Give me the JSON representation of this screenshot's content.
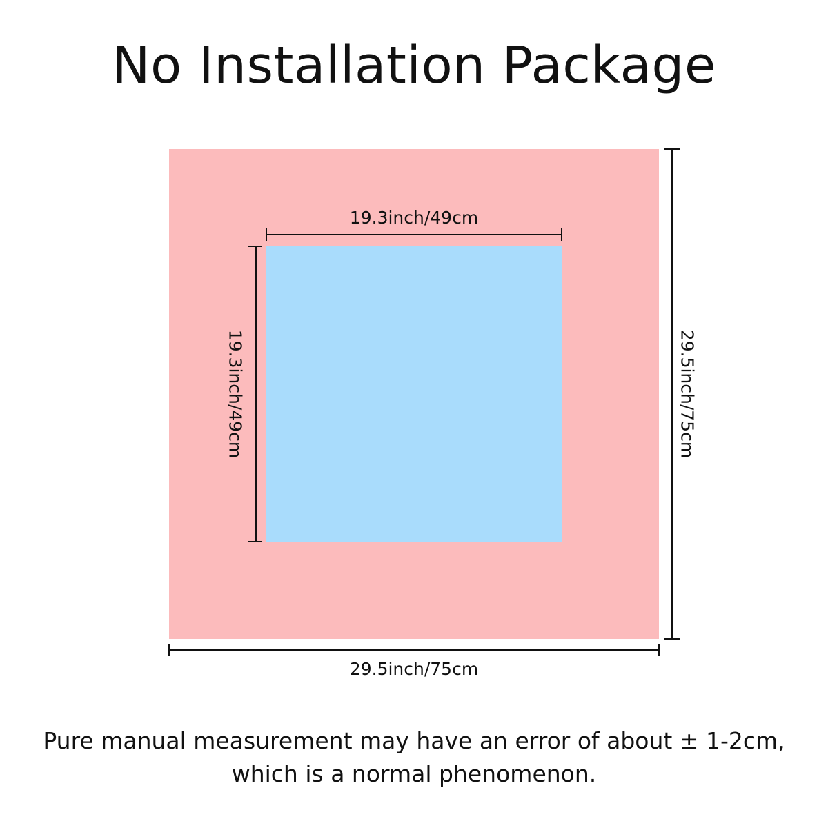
{
  "title": "No Installation Package",
  "colors": {
    "outer_fill": "#fcbbbc",
    "inner_fill": "#a9dcfc",
    "lines": "#111111"
  },
  "dimensions": {
    "inner_width": "19.3inch/49cm",
    "inner_height": "19.3inch/49cm",
    "outer_width": "29.5inch/75cm",
    "outer_height": "29.5inch/75cm"
  },
  "note": {
    "line1": "Pure manual measurement may have an error of about ± 1-2cm,",
    "line2": "which is a normal phenomenon."
  }
}
